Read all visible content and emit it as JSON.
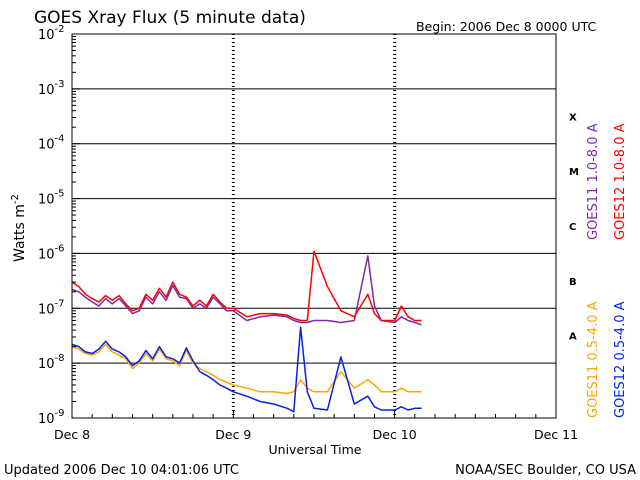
{
  "chart_data": {
    "type": "line",
    "title": "GOES Xray Flux (5 minute data)",
    "begin_label": "Begin:  2006 Dec 8 0000 UTC",
    "xlabel": "Universal Time",
    "ylabel": "Watts m",
    "ylabel_exp": "-2",
    "y_scale": "log",
    "ylim": [
      1e-09,
      0.01
    ],
    "xlim": [
      "2006-12-08T00:00",
      "2006-12-11T00:00"
    ],
    "x_ticks": [
      {
        "label": "Dec 8",
        "t": "2006-12-08T00:00"
      },
      {
        "label": "Dec 9",
        "t": "2006-12-09T00:00"
      },
      {
        "label": "Dec 10",
        "t": "2006-12-10T00:00"
      },
      {
        "label": "Dec 11",
        "t": "2006-12-11T00:00"
      }
    ],
    "y_ticks": [
      {
        "base": "10",
        "exp": "-9",
        "value": 1e-09
      },
      {
        "base": "10",
        "exp": "-8",
        "value": 1e-08
      },
      {
        "base": "10",
        "exp": "-7",
        "value": 1e-07
      },
      {
        "base": "10",
        "exp": "-6",
        "value": 1e-06
      },
      {
        "base": "10",
        "exp": "-5",
        "value": 1e-05
      },
      {
        "base": "10",
        "exp": "-4",
        "value": 0.0001
      },
      {
        "base": "10",
        "exp": "-3",
        "value": 0.001
      },
      {
        "base": "10",
        "exp": "-2",
        "value": 0.01
      }
    ],
    "class_labels": [
      {
        "label": "A",
        "value": 3.16e-08
      },
      {
        "label": "B",
        "value": 3.16e-07
      },
      {
        "label": "C",
        "value": 3.16e-06
      },
      {
        "label": "M",
        "value": 3.16e-05
      },
      {
        "label": "X",
        "value": 0.000316
      }
    ],
    "grid": "horizontal at each decade from 1e-8 to 1e-3; dashed vertical day markers",
    "legend_placement": "right, vertical text",
    "series": [
      {
        "name": "GOES11 1.0-8.0 A",
        "color": "#7f2aa8",
        "x": [
          "2006-12-08T00:00",
          "2006-12-08T01:00",
          "2006-12-08T02:00",
          "2006-12-08T03:00",
          "2006-12-08T04:00",
          "2006-12-08T05:00",
          "2006-12-08T06:00",
          "2006-12-08T07:00",
          "2006-12-08T08:00",
          "2006-12-08T09:00",
          "2006-12-08T10:00",
          "2006-12-08T11:00",
          "2006-12-08T12:00",
          "2006-12-08T13:00",
          "2006-12-08T14:00",
          "2006-12-08T15:00",
          "2006-12-08T16:00",
          "2006-12-08T17:00",
          "2006-12-08T18:00",
          "2006-12-08T19:00",
          "2006-12-08T20:00",
          "2006-12-08T21:00",
          "2006-12-08T22:00",
          "2006-12-08T23:00",
          "2006-12-09T00:00",
          "2006-12-09T02:00",
          "2006-12-09T04:00",
          "2006-12-09T06:00",
          "2006-12-09T08:00",
          "2006-12-09T09:00",
          "2006-12-09T10:00",
          "2006-12-09T11:00",
          "2006-12-09T12:00",
          "2006-12-09T14:00",
          "2006-12-09T16:00",
          "2006-12-09T18:00",
          "2006-12-09T20:00",
          "2006-12-09T21:00",
          "2006-12-09T22:00",
          "2006-12-10T00:00",
          "2006-12-10T01:00",
          "2006-12-10T02:00",
          "2006-12-10T03:00",
          "2006-12-10T04:00"
        ],
        "values": [
          2.2e-07,
          2e-07,
          1.6e-07,
          1.3e-07,
          1.1e-07,
          1.5e-07,
          1.2e-07,
          1.5e-07,
          1.1e-07,
          8e-08,
          9e-08,
          1.6e-07,
          1.2e-07,
          2e-07,
          1.4e-07,
          2.6e-07,
          1.6e-07,
          1.5e-07,
          1e-07,
          1.2e-07,
          1e-07,
          1.6e-07,
          1.2e-07,
          9e-08,
          9e-08,
          6e-08,
          7e-08,
          7.5e-08,
          7e-08,
          6e-08,
          5.5e-08,
          5.5e-08,
          6e-08,
          6e-08,
          5.5e-08,
          6e-08,
          9e-07,
          1.1e-07,
          6e-08,
          5.5e-08,
          7e-08,
          6e-08,
          5.5e-08,
          5e-08
        ]
      },
      {
        "name": "GOES12 1.0-8.0 A",
        "color": "#ff0000",
        "x": [
          "2006-12-08T00:00",
          "2006-12-08T01:00",
          "2006-12-08T02:00",
          "2006-12-08T03:00",
          "2006-12-08T04:00",
          "2006-12-08T05:00",
          "2006-12-08T06:00",
          "2006-12-08T07:00",
          "2006-12-08T08:00",
          "2006-12-08T09:00",
          "2006-12-08T10:00",
          "2006-12-08T11:00",
          "2006-12-08T12:00",
          "2006-12-08T13:00",
          "2006-12-08T14:00",
          "2006-12-08T15:00",
          "2006-12-08T16:00",
          "2006-12-08T17:00",
          "2006-12-08T18:00",
          "2006-12-08T19:00",
          "2006-12-08T20:00",
          "2006-12-08T21:00",
          "2006-12-08T22:00",
          "2006-12-08T23:00",
          "2006-12-09T00:00",
          "2006-12-09T02:00",
          "2006-12-09T04:00",
          "2006-12-09T06:00",
          "2006-12-09T08:00",
          "2006-12-09T09:00",
          "2006-12-09T10:00",
          "2006-12-09T11:00",
          "2006-12-09T12:00",
          "2006-12-09T14:00",
          "2006-12-09T16:00",
          "2006-12-09T18:00",
          "2006-12-09T20:00",
          "2006-12-09T21:00",
          "2006-12-09T22:00",
          "2006-12-10T00:00",
          "2006-12-10T01:00",
          "2006-12-10T02:00",
          "2006-12-10T03:00",
          "2006-12-10T04:00"
        ],
        "values": [
          3e-07,
          2.5e-07,
          1.8e-07,
          1.5e-07,
          1.3e-07,
          1.7e-07,
          1.4e-07,
          1.7e-07,
          1.2e-07,
          9e-08,
          1e-07,
          1.8e-07,
          1.4e-07,
          2.3e-07,
          1.6e-07,
          3e-07,
          1.8e-07,
          1.6e-07,
          1.1e-07,
          1.4e-07,
          1.1e-07,
          1.8e-07,
          1.3e-07,
          1e-07,
          1e-07,
          7e-08,
          8e-08,
          8e-08,
          7.5e-08,
          6.5e-08,
          6e-08,
          6e-08,
          1.1e-06,
          2.5e-07,
          9e-08,
          7e-08,
          1.8e-07,
          8e-08,
          6e-08,
          6e-08,
          1.1e-07,
          7e-08,
          6e-08,
          6e-08
        ]
      },
      {
        "name": "GOES11 0.5-4.0 A",
        "color": "#ffa500",
        "x": [
          "2006-12-08T00:00",
          "2006-12-08T01:00",
          "2006-12-08T02:00",
          "2006-12-08T03:00",
          "2006-12-08T04:00",
          "2006-12-08T05:00",
          "2006-12-08T06:00",
          "2006-12-08T07:00",
          "2006-12-08T08:00",
          "2006-12-08T09:00",
          "2006-12-08T10:00",
          "2006-12-08T11:00",
          "2006-12-08T12:00",
          "2006-12-08T13:00",
          "2006-12-08T14:00",
          "2006-12-08T15:00",
          "2006-12-08T16:00",
          "2006-12-08T17:00",
          "2006-12-08T18:00",
          "2006-12-08T19:00",
          "2006-12-08T20:00",
          "2006-12-08T21:00",
          "2006-12-08T22:00",
          "2006-12-08T23:00",
          "2006-12-09T00:00",
          "2006-12-09T02:00",
          "2006-12-09T04:00",
          "2006-12-09T06:00",
          "2006-12-09T08:00",
          "2006-12-09T09:00",
          "2006-12-09T10:00",
          "2006-12-09T11:00",
          "2006-12-09T12:00",
          "2006-12-09T14:00",
          "2006-12-09T16:00",
          "2006-12-09T18:00",
          "2006-12-09T20:00",
          "2006-12-09T21:00",
          "2006-12-09T22:00",
          "2006-12-10T00:00",
          "2006-12-10T01:00",
          "2006-12-10T02:00",
          "2006-12-10T03:00",
          "2006-12-10T04:00"
        ],
        "values": [
          2e-08,
          1.8e-08,
          1.5e-08,
          1.4e-08,
          1.6e-08,
          2.2e-08,
          1.6e-08,
          1.4e-08,
          1.2e-08,
          8e-09,
          1e-08,
          1.5e-08,
          1.1e-08,
          1.8e-08,
          1.2e-08,
          1.1e-08,
          9e-09,
          1.7e-08,
          1e-08,
          8e-09,
          7e-09,
          6e-09,
          5e-09,
          4.5e-09,
          4e-09,
          3.5e-09,
          3e-09,
          3e-09,
          2.8e-09,
          3e-09,
          5e-09,
          3.5e-09,
          3e-09,
          3e-09,
          7e-09,
          3.5e-09,
          5e-09,
          4e-09,
          3e-09,
          3e-09,
          3.5e-09,
          3e-09,
          3e-09,
          3e-09
        ]
      },
      {
        "name": "GOES12 0.5-4.0 A",
        "color": "#0022ee",
        "x": [
          "2006-12-08T00:00",
          "2006-12-08T01:00",
          "2006-12-08T02:00",
          "2006-12-08T03:00",
          "2006-12-08T04:00",
          "2006-12-08T05:00",
          "2006-12-08T06:00",
          "2006-12-08T07:00",
          "2006-12-08T08:00",
          "2006-12-08T09:00",
          "2006-12-08T10:00",
          "2006-12-08T11:00",
          "2006-12-08T12:00",
          "2006-12-08T13:00",
          "2006-12-08T14:00",
          "2006-12-08T15:00",
          "2006-12-08T16:00",
          "2006-12-08T17:00",
          "2006-12-08T18:00",
          "2006-12-08T19:00",
          "2006-12-08T20:00",
          "2006-12-08T21:00",
          "2006-12-08T22:00",
          "2006-12-08T23:00",
          "2006-12-09T00:00",
          "2006-12-09T02:00",
          "2006-12-09T04:00",
          "2006-12-09T06:00",
          "2006-12-09T08:00",
          "2006-12-09T09:00",
          "2006-12-09T10:00",
          "2006-12-09T11:00",
          "2006-12-09T12:00",
          "2006-12-09T14:00",
          "2006-12-09T16:00",
          "2006-12-09T18:00",
          "2006-12-09T20:00",
          "2006-12-09T21:00",
          "2006-12-09T22:00",
          "2006-12-10T00:00",
          "2006-12-10T01:00",
          "2006-12-10T02:00",
          "2006-12-10T03:00",
          "2006-12-10T04:00"
        ],
        "values": [
          2.2e-08,
          2e-08,
          1.6e-08,
          1.5e-08,
          1.8e-08,
          2.5e-08,
          1.8e-08,
          1.6e-08,
          1.3e-08,
          9e-09,
          1.1e-08,
          1.7e-08,
          1.2e-08,
          2e-08,
          1.3e-08,
          1.2e-08,
          1e-08,
          1.9e-08,
          1.1e-08,
          7e-09,
          6e-09,
          5e-09,
          4e-09,
          3.5e-09,
          3e-09,
          2.5e-09,
          2e-09,
          1.8e-09,
          1.5e-09,
          1.3e-09,
          4.5e-08,
          3e-09,
          1.5e-09,
          1.4e-09,
          1.3e-08,
          1.8e-09,
          2.5e-09,
          1.6e-09,
          1.4e-09,
          1.4e-09,
          1.6e-09,
          1.4e-09,
          1.5e-09,
          1.5e-09
        ]
      }
    ]
  },
  "footer": {
    "left": "Updated 2006 Dec 10 04:01:06 UTC",
    "right": "NOAA/SEC Boulder, CO USA"
  }
}
